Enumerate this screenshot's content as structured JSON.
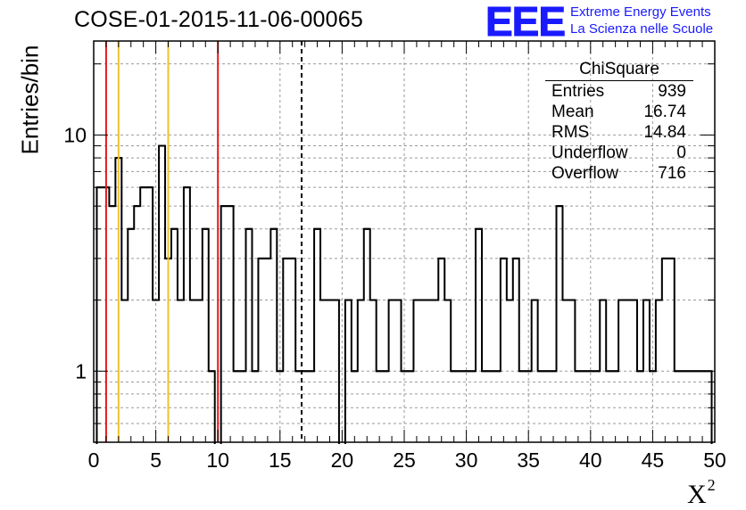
{
  "chart_data": {
    "type": "histogram",
    "title": "COSE-01-2015-11-06-00065",
    "xlabel": "X",
    "xlabel_superscript": "2",
    "ylabel": "Entries/bin",
    "xlim": [
      0,
      50
    ],
    "ylim": [
      0.5,
      25
    ],
    "yscale": "log",
    "bin_width": 1,
    "grid": true,
    "x_ticks": [
      0,
      5,
      10,
      15,
      20,
      25,
      30,
      35,
      40,
      45,
      50
    ],
    "x_tick_labels": [
      "0",
      "5",
      "10",
      "15",
      "20",
      "25",
      "30",
      "35",
      "40",
      "45",
      "50"
    ],
    "y_ticks": [
      1,
      10
    ],
    "y_tick_labels": [
      "1",
      "10"
    ],
    "bin_edges": [
      0,
      1,
      2,
      3,
      4,
      5,
      6,
      7,
      8,
      9,
      10,
      11,
      12,
      13,
      14,
      15,
      16,
      17,
      18,
      19,
      20,
      21,
      22,
      23,
      24,
      25,
      26,
      27,
      28,
      29,
      30,
      31,
      32,
      33,
      34,
      35,
      36,
      37,
      38,
      39,
      40,
      41,
      42,
      43,
      44,
      45,
      46,
      47,
      48,
      49,
      50
    ],
    "values": [
      [
        0.5,
        6
      ],
      [
        1.0,
        6
      ],
      [
        1.5,
        5
      ],
      [
        2.0,
        8
      ],
      [
        2.5,
        2
      ],
      [
        3.0,
        4
      ],
      [
        3.5,
        5
      ],
      [
        4.0,
        6
      ],
      [
        4.5,
        6
      ],
      [
        5.0,
        2
      ],
      [
        5.5,
        9
      ],
      [
        6.0,
        3
      ],
      [
        6.5,
        4
      ],
      [
        7.0,
        2
      ],
      [
        7.5,
        6
      ],
      [
        8.0,
        2
      ],
      [
        8.5,
        2
      ],
      [
        9.0,
        4
      ],
      [
        9.5,
        1
      ],
      [
        10.5,
        5
      ],
      [
        11.0,
        5
      ],
      [
        11.5,
        1
      ],
      [
        12.0,
        1
      ],
      [
        12.5,
        4
      ],
      [
        13.0,
        1
      ],
      [
        13.5,
        3
      ],
      [
        14.0,
        3
      ],
      [
        14.5,
        4
      ],
      [
        15.0,
        1
      ],
      [
        15.5,
        3
      ],
      [
        16.0,
        3
      ],
      [
        16.5,
        1
      ],
      [
        17.0,
        1
      ],
      [
        17.5,
        1
      ],
      [
        18.0,
        4
      ],
      [
        18.5,
        2
      ],
      [
        19.0,
        2
      ],
      [
        19.5,
        2
      ],
      [
        20.5,
        2
      ],
      [
        21.0,
        1
      ],
      [
        21.5,
        2
      ],
      [
        22.0,
        4
      ],
      [
        22.5,
        2
      ],
      [
        23.0,
        1
      ],
      [
        23.5,
        1
      ],
      [
        24.0,
        2
      ],
      [
        24.5,
        2
      ],
      [
        25.0,
        1
      ],
      [
        25.5,
        1
      ],
      [
        26.0,
        2
      ],
      [
        26.5,
        2
      ],
      [
        27.0,
        2
      ],
      [
        27.5,
        2
      ],
      [
        28.0,
        3
      ],
      [
        28.5,
        2
      ],
      [
        29.0,
        1
      ],
      [
        29.5,
        1
      ],
      [
        30.0,
        1
      ],
      [
        30.5,
        1
      ],
      [
        31.0,
        4
      ],
      [
        31.5,
        1
      ],
      [
        32.0,
        1
      ],
      [
        32.5,
        1
      ],
      [
        33.0,
        3
      ],
      [
        33.5,
        2
      ],
      [
        34.0,
        3
      ],
      [
        34.5,
        1
      ],
      [
        35.0,
        1
      ],
      [
        35.5,
        2
      ],
      [
        36.0,
        1
      ],
      [
        36.5,
        1
      ],
      [
        37.0,
        1
      ],
      [
        37.5,
        5
      ],
      [
        38.0,
        2
      ],
      [
        38.5,
        2
      ],
      [
        39.0,
        1
      ],
      [
        39.5,
        1
      ],
      [
        40.0,
        1
      ],
      [
        40.5,
        1
      ],
      [
        41.0,
        2
      ],
      [
        41.5,
        1
      ],
      [
        42.0,
        1
      ],
      [
        42.5,
        2
      ],
      [
        43.0,
        2
      ],
      [
        43.5,
        2
      ],
      [
        44.0,
        1
      ],
      [
        44.5,
        2
      ],
      [
        45.0,
        1
      ],
      [
        45.5,
        2
      ],
      [
        46.0,
        3
      ],
      [
        46.5,
        3
      ],
      [
        47.0,
        1
      ],
      [
        47.5,
        1
      ],
      [
        48.0,
        1
      ],
      [
        48.5,
        1
      ],
      [
        49.0,
        1
      ],
      [
        49.5,
        1
      ]
    ],
    "markers": [
      {
        "x": 1,
        "color": "#e41a1c",
        "style": "solid"
      },
      {
        "x": 2,
        "color": "#f2c12e",
        "style": "solid"
      },
      {
        "x": 6,
        "color": "#f2c12e",
        "style": "solid"
      },
      {
        "x": 10,
        "color": "#e41a1c",
        "style": "solid"
      },
      {
        "x": 16.74,
        "color": "#000000",
        "style": "dashed"
      }
    ],
    "stats_box": {
      "title": "ChiSquare",
      "rows": [
        {
          "label": "Entries",
          "value": "939"
        },
        {
          "label": "Mean",
          "value": "16.74"
        },
        {
          "label": "RMS",
          "value": "14.84"
        },
        {
          "label": "Underflow",
          "value": "0"
        },
        {
          "label": "Overflow",
          "value": "716"
        }
      ]
    }
  },
  "logo": {
    "mark": "EEE",
    "line1": "Extreme Energy Events",
    "line2": "La Scienza nelle Scuole",
    "color": "#1a1aff"
  }
}
